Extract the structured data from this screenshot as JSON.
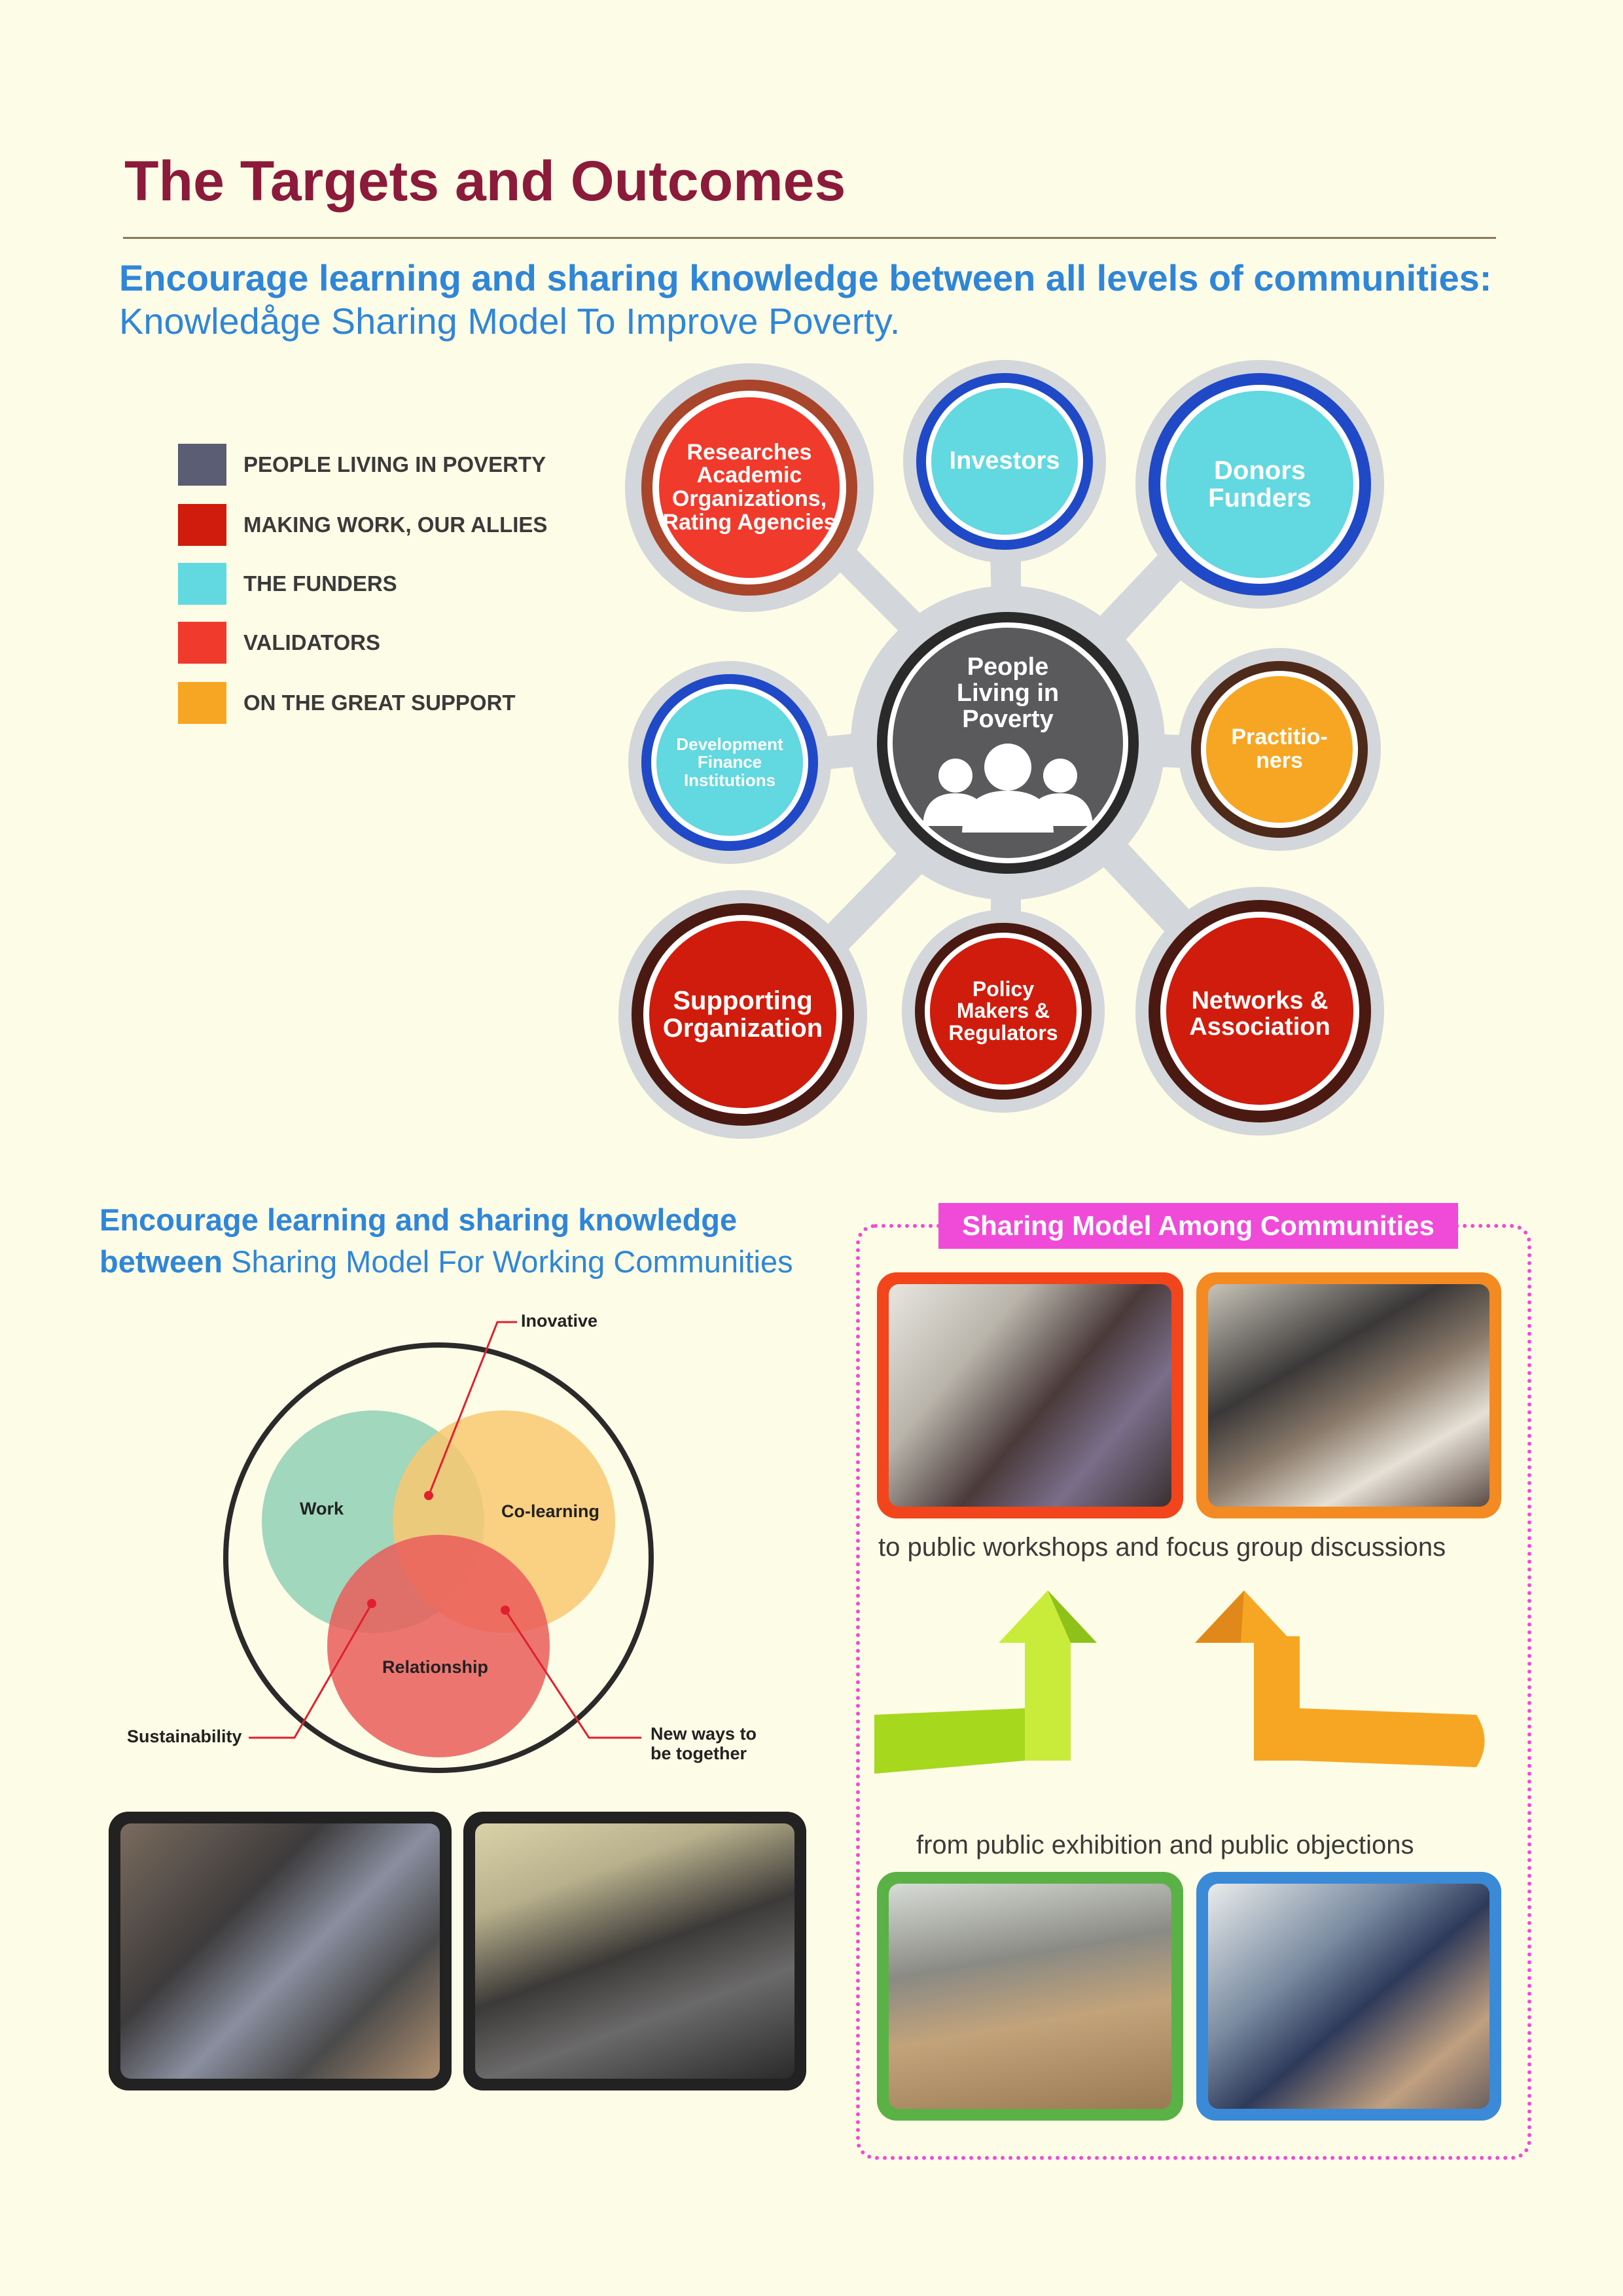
{
  "page": {
    "title": "The Targets and Outcomes",
    "subtitle_strong": "Encourage learning and sharing knowledge between all levels of communities:",
    "subtitle_light": "Knowledåge Sharing Model To Improve Poverty."
  },
  "legend": [
    {
      "label": "PEOPLE LIVING IN POVERTY",
      "color": "#5b5d74"
    },
    {
      "label": "MAKING WORK, OUR ALLIES",
      "color": "#d01c0c"
    },
    {
      "label": "THE FUNDERS",
      "color": "#62d8e0"
    },
    {
      "label": "VALIDATORS",
      "color": "#f03a2c"
    },
    {
      "label": "ON THE GREAT SUPPORT",
      "color": "#f7a623"
    }
  ],
  "hub": {
    "center": "People Living in Poverty",
    "nodes": {
      "researches": "Researches Academic Organizations, Rating Agencies",
      "investors": "Investors",
      "donors": "Donors Funders",
      "dfi": "Development Finance Institutions",
      "practitioners": "Practitio- ners",
      "supporting": "Supporting Organization",
      "policy": "Policy Makers & Regulators",
      "networks": "Networks & Association"
    }
  },
  "section2": {
    "line1": "Encourage learning and sharing knowledge",
    "line2_strong": "between",
    "line2_light": "Sharing Model For Working Communities"
  },
  "venn": {
    "work": "Work",
    "colearning": "Co-learning",
    "relationship": "Relationship",
    "inovative": "Inovative",
    "sustainability": "Sustainability",
    "new_ways_1": "New ways to",
    "new_ways_2": "be together"
  },
  "sharing": {
    "banner": "Sharing Model Among Communities",
    "caption_top": "to public workshops and focus group discussions",
    "caption_bottom": "from public exhibition and public objections"
  },
  "colors": {
    "title": "#8c1a3a",
    "subhead": "#2f86d8",
    "banner": "#f04ad8",
    "background": "#fdfce6"
  }
}
